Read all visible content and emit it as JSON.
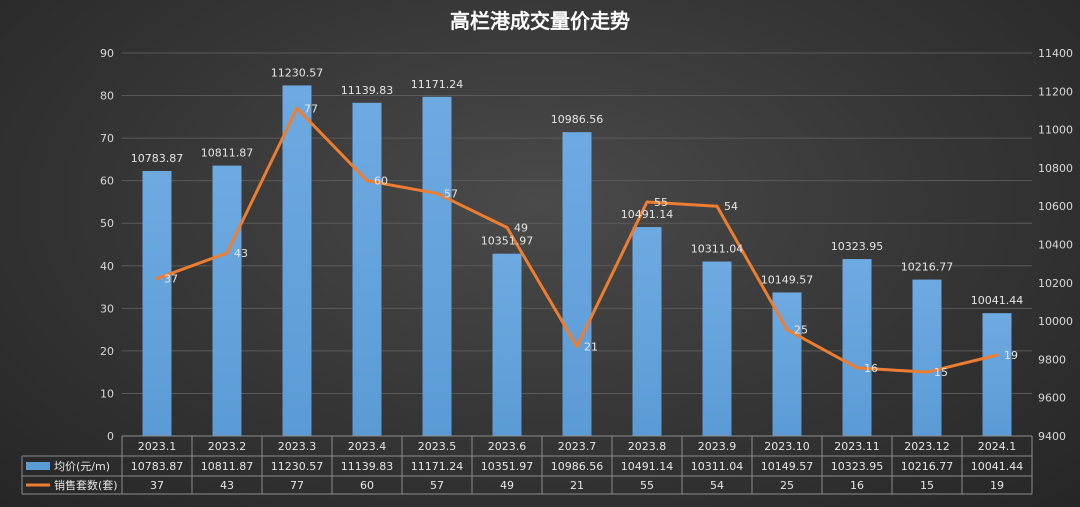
{
  "chart_data": {
    "type": "bar",
    "title": "高栏港成交量价走势",
    "categories": [
      "2023.1",
      "2023.2",
      "2023.3",
      "2023.4",
      "2023.5",
      "2023.6",
      "2023.7",
      "2023.8",
      "2023.9",
      "2023.10",
      "2023.11",
      "2023.12",
      "2024.1"
    ],
    "series": [
      {
        "name": "均价(元/m)",
        "type": "bar",
        "axis": "right",
        "color": "#5b9bd5",
        "values": [
          10783.87,
          10811.87,
          11230.57,
          11139.83,
          11171.24,
          10351.97,
          10986.56,
          10491.14,
          10311.04,
          10149.57,
          10323.95,
          10216.77,
          10041.44
        ],
        "labels": [
          "10783.87",
          "10811.87",
          "11230.57",
          "11139.83",
          "11171.24",
          "10351.97",
          "10986.56",
          "10491.14",
          "10311.04",
          "10149.57",
          "10323.95",
          "10216.77",
          "10041.44"
        ]
      },
      {
        "name": "销售套数(套)",
        "type": "line",
        "axis": "left",
        "color": "#ed7d31",
        "values": [
          37,
          43,
          77,
          60,
          57,
          49,
          21,
          55,
          54,
          25,
          16,
          15,
          19
        ],
        "labels": [
          "37",
          "43",
          "77",
          "60",
          "57",
          "49",
          "21",
          "55",
          "54",
          "25",
          "16",
          "15",
          "19"
        ]
      }
    ],
    "y_left": {
      "min": 0,
      "max": 90,
      "ticks": [
        "0",
        "10",
        "20",
        "30",
        "40",
        "50",
        "60",
        "70",
        "80",
        "90"
      ]
    },
    "y_right": {
      "min": 9400,
      "max": 11400,
      "ticks": [
        "9400",
        "9600",
        "9800",
        "10000",
        "10200",
        "10400",
        "10600",
        "10800",
        "11000",
        "11200",
        "11400"
      ]
    },
    "grid": true,
    "legend": "data-table"
  }
}
